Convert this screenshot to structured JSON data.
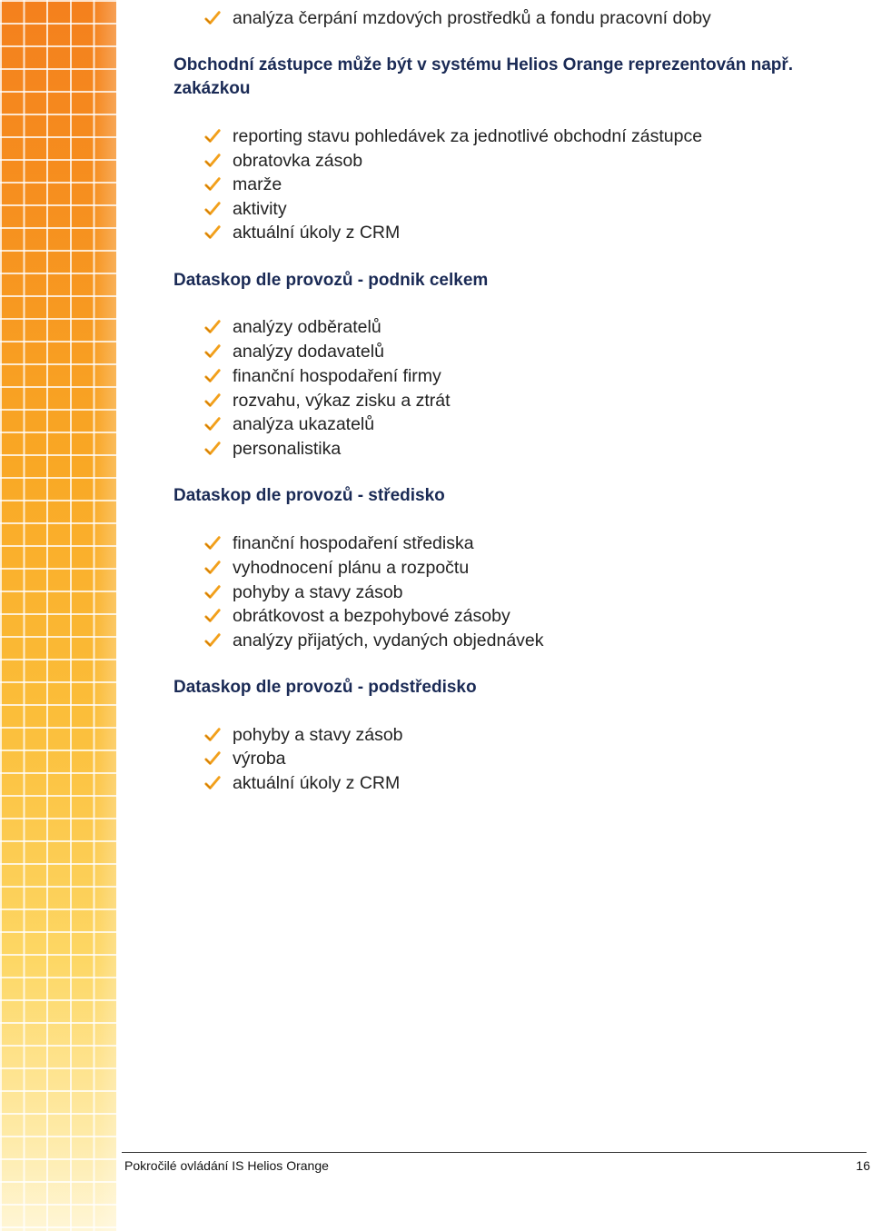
{
  "section0": {
    "items": [
      "analýza čerpání mzdových prostředků a fondu pracovní doby"
    ]
  },
  "section1": {
    "heading": "Obchodní zástupce může být v systému Helios Orange reprezentován např. zakázkou",
    "items": [
      "reporting stavu pohledávek za jednotlivé obchodní zástupce",
      "obratovka zásob",
      "marže",
      "aktivity",
      "aktuální úkoly z CRM"
    ]
  },
  "section2": {
    "heading": "Dataskop dle provozů - podnik celkem",
    "items": [
      "analýzy odběratelů",
      "analýzy dodavatelů",
      "finanční hospodaření firmy",
      "rozvahu, výkaz zisku a ztrát",
      "analýza ukazatelů",
      "personalistika"
    ]
  },
  "section3": {
    "heading": "Dataskop dle provozů - středisko",
    "items": [
      "finanční hospodaření střediska",
      "vyhodnocení plánu a rozpočtu",
      "pohyby a stavy zásob",
      "obrátkovost a bezpohybové zásoby",
      "analýzy přijatých, vydaných objednávek"
    ]
  },
  "section4": {
    "heading": "Dataskop dle provozů - podstředisko",
    "items": [
      "pohyby a stavy zásob",
      "výroba",
      "aktuální úkoly z CRM"
    ]
  },
  "footer": {
    "title": "Pokročilé ovládání IS Helios Orange",
    "page_number": "16"
  },
  "colors": {
    "band_top": "#f4801d",
    "band_bottom": "#fff6d6",
    "heading": "#1a2a55",
    "check": "#f2a01c"
  },
  "icons": {
    "bullet": "checkmark-icon"
  }
}
